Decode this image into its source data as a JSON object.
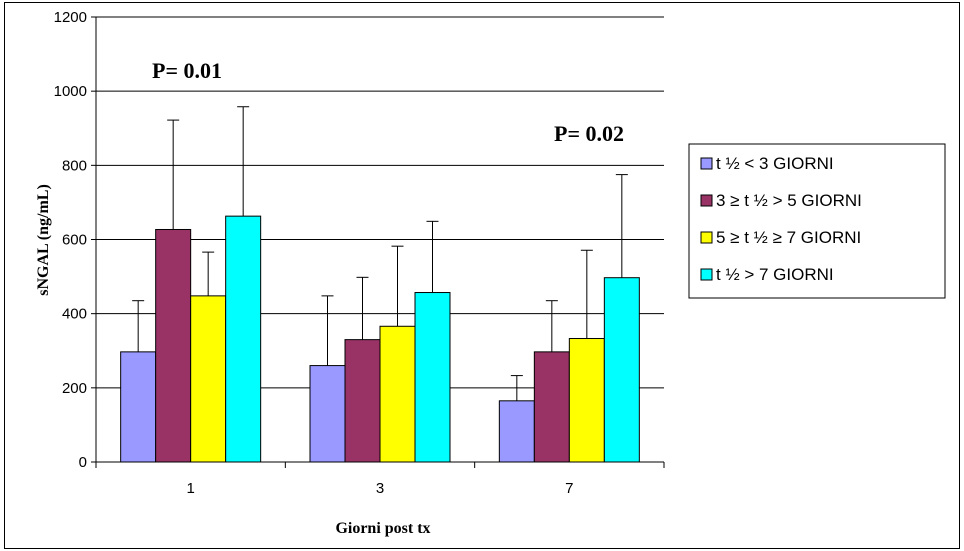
{
  "chart_data": {
    "type": "bar",
    "xlabel": "Giorni post tx",
    "ylabel": "sNGAL (ng/mL)",
    "ylim": [
      0,
      1200
    ],
    "yticks": [
      0,
      200,
      400,
      600,
      800,
      1000,
      1200
    ],
    "grid": true,
    "legend_position": "right",
    "categories": [
      "1",
      "3",
      "7"
    ],
    "series": [
      {
        "name": "t ½ < 3 GIORNI",
        "color": "#9999FF",
        "values": [
          297,
          260,
          165
        ],
        "errors": [
          138,
          188,
          68
        ]
      },
      {
        "name": "3 ≥ t ½  > 5 GIORNI",
        "color": "#993366",
        "values": [
          627,
          330,
          297
        ],
        "errors": [
          295,
          168,
          138
        ]
      },
      {
        "name": "5 ≥ t ½ ≥ 7 GIORNI",
        "color": "#FFFF00",
        "values": [
          448,
          366,
          333
        ],
        "errors": [
          118,
          216,
          238
        ]
      },
      {
        "name": "t ½ > 7 GIORNI",
        "color": "#00FFFF",
        "values": [
          663,
          457,
          497
        ],
        "errors": [
          295,
          192,
          278
        ]
      }
    ],
    "annotations": [
      {
        "text": "P= 0.01",
        "category": "1"
      },
      {
        "text": "P= 0.02",
        "category": "7"
      }
    ]
  }
}
